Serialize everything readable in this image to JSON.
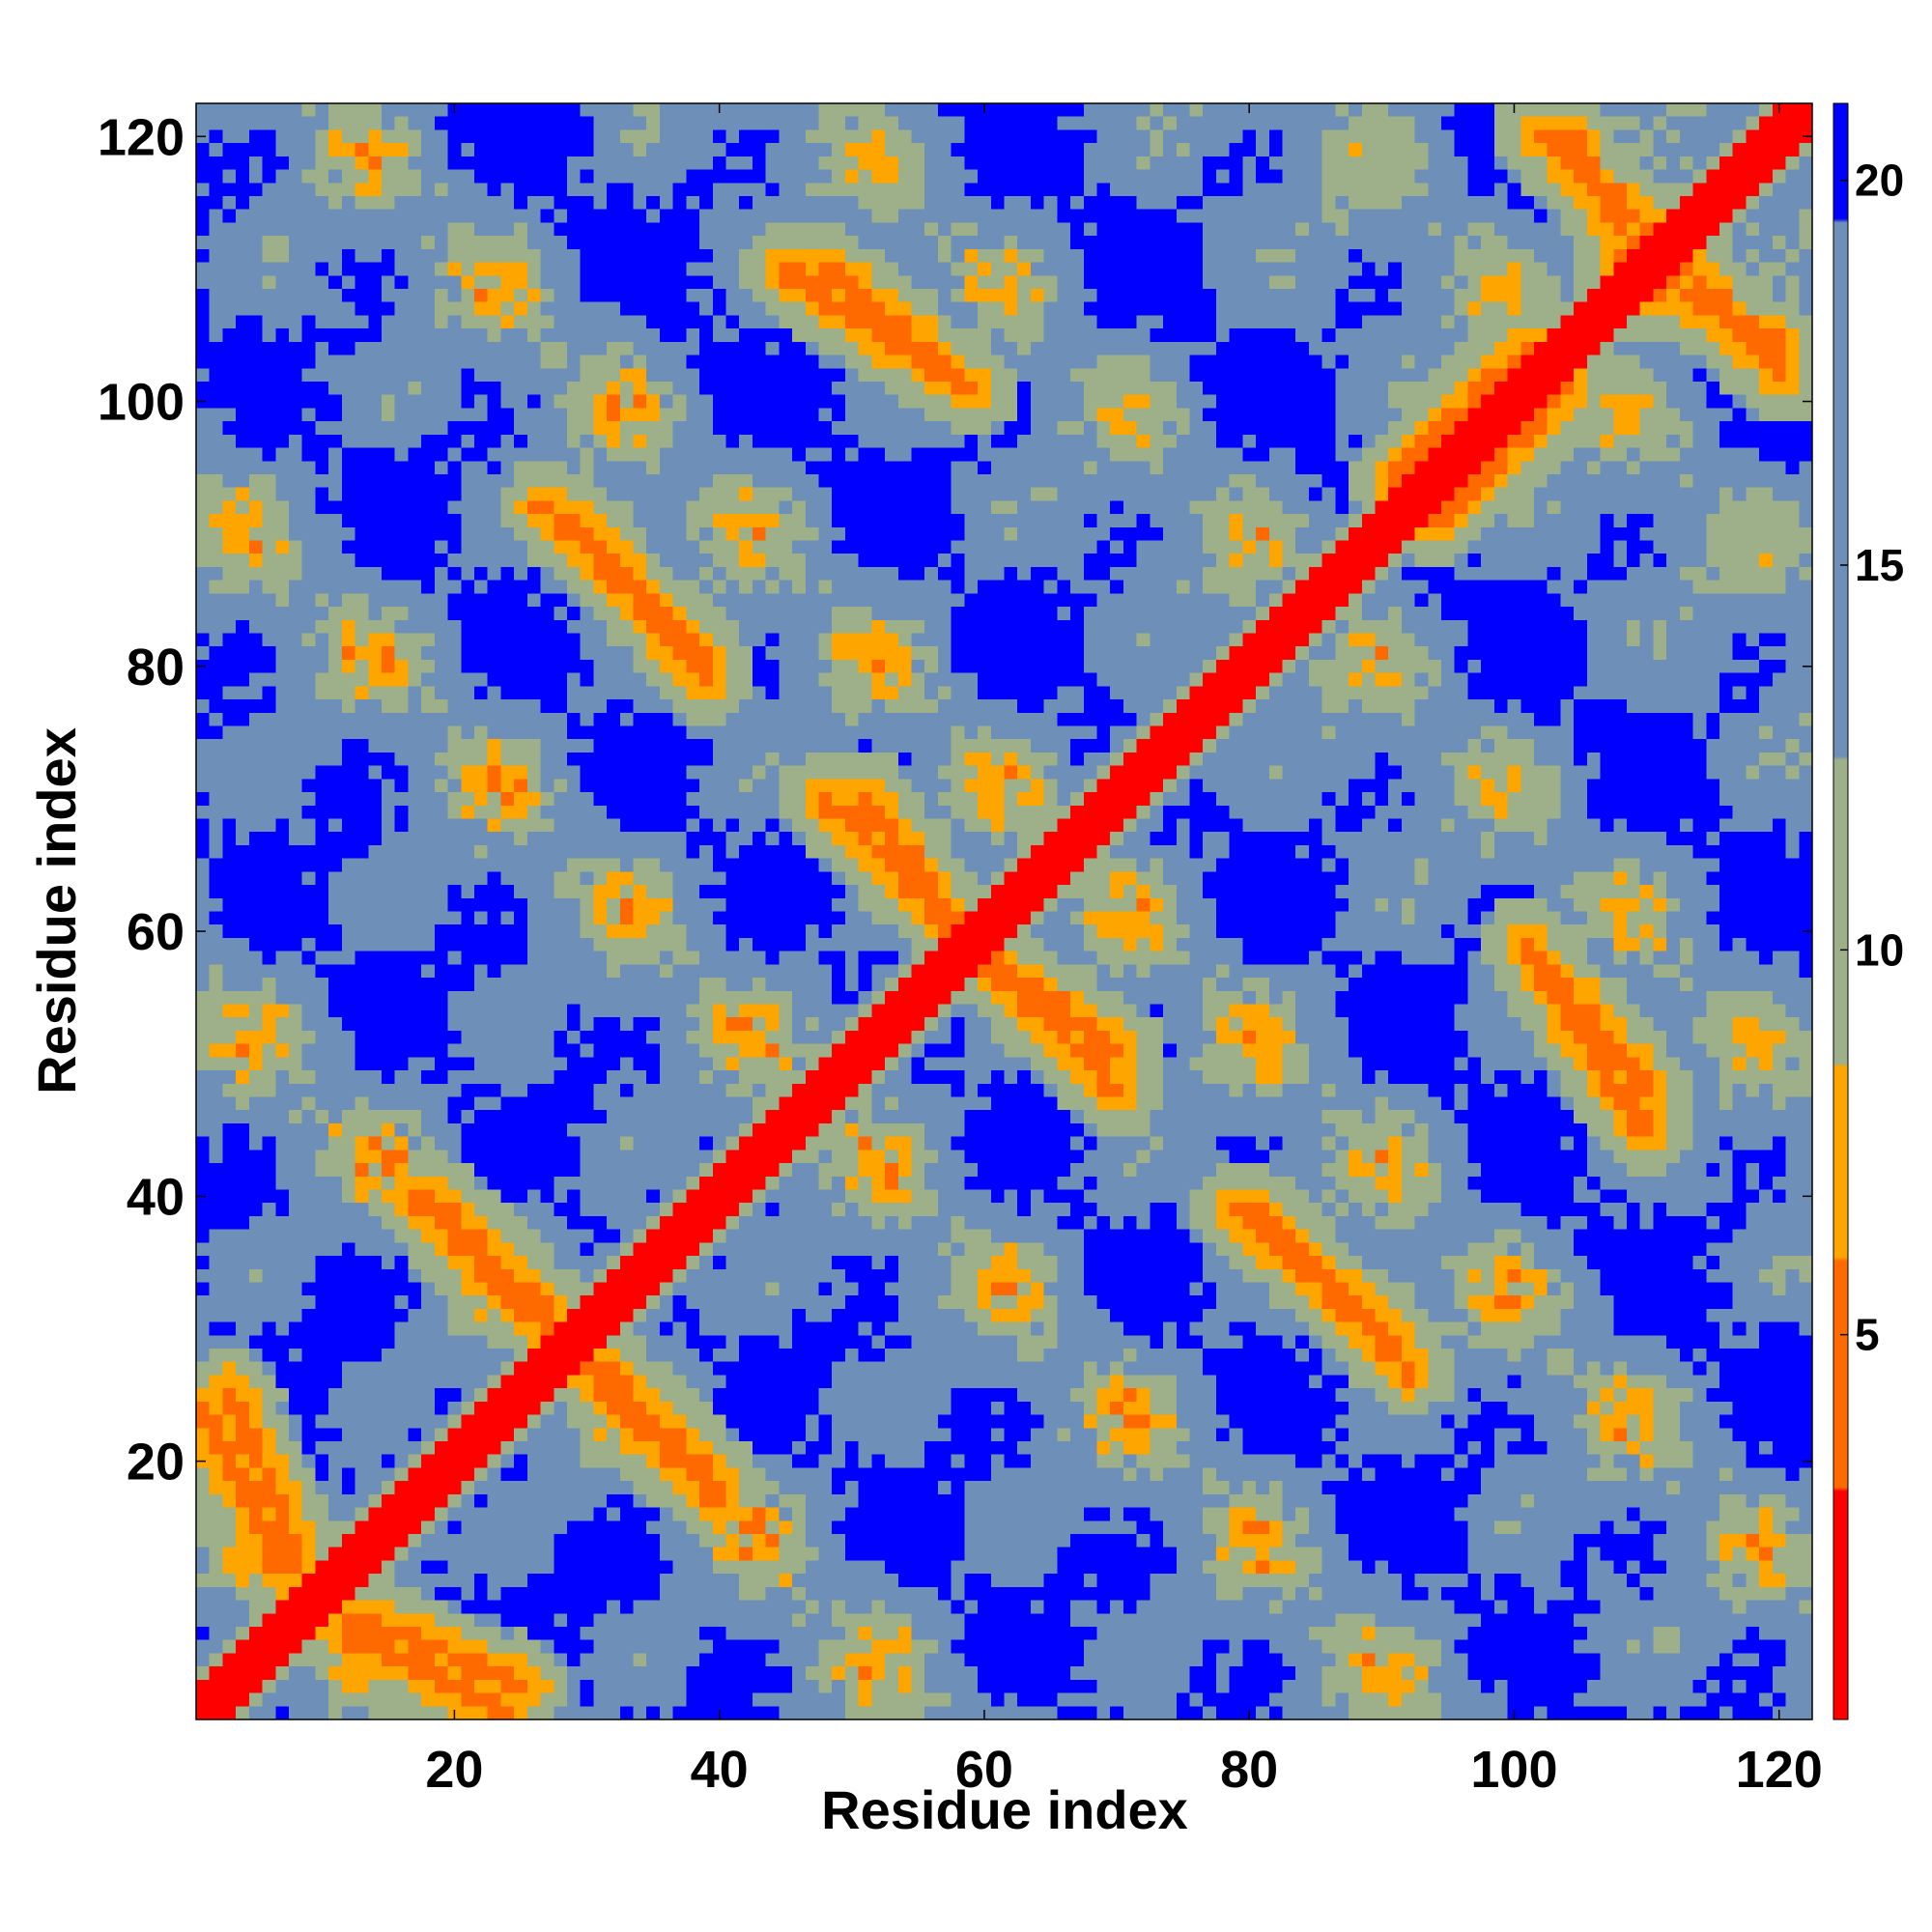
{
  "chart_data": {
    "type": "heatmap",
    "xlabel": "Residue index",
    "ylabel": "Residue index",
    "n_residues": 122,
    "xlim": [
      1,
      122
    ],
    "ylim": [
      1,
      122
    ],
    "x_ticks": [
      20,
      40,
      60,
      80,
      100,
      120
    ],
    "y_ticks": [
      20,
      40,
      60,
      80,
      100,
      120
    ],
    "colorbar": {
      "ticks": [
        5,
        10,
        15,
        20
      ],
      "range": [
        0,
        21
      ]
    },
    "colors": {
      "low": "#ff0000",
      "low_mid": "#ff6a00",
      "mid_low": "#ffa500",
      "mid": "#9db08a",
      "mid_high": "#6d8fb8",
      "high": "#0000ff"
    },
    "structure": {
      "main_diagonal": "residue i vs i (contact distance near 0)",
      "anti_diagonal_contacts": [
        {
          "from": [
            18,
            40
          ],
          "to": [
            31,
            27
          ]
        },
        {
          "from": [
            29,
            28
          ],
          "to": [
            40,
            17
          ]
        },
        {
          "from": [
            3,
            25
          ],
          "to": [
            8,
            13
          ]
        },
        {
          "from": [
            12,
            7
          ],
          "to": [
            24,
            1
          ]
        },
        {
          "from": [
            29,
            91
          ],
          "to": [
            39,
            79
          ]
        },
        {
          "from": [
            51,
            70
          ],
          "to": [
            58,
            60
          ]
        },
        {
          "from": [
            60,
            58
          ],
          "to": [
            70,
            48
          ]
        },
        {
          "from": [
            80,
            39
          ],
          "to": [
            92,
            27
          ]
        },
        {
          "from": [
            48,
            110
          ],
          "to": [
            59,
            101
          ]
        },
        {
          "from": [
            102,
            57
          ],
          "to": [
            110,
            45
          ]
        },
        {
          "from": [
            104,
            120
          ],
          "to": [
            111,
            108
          ]
        },
        {
          "from": [
            113,
            110
          ],
          "to": [
            120,
            102
          ]
        },
        {
          "from": [
            91,
            94
          ],
          "to": [
            101,
            104
          ]
        }
      ]
    }
  }
}
